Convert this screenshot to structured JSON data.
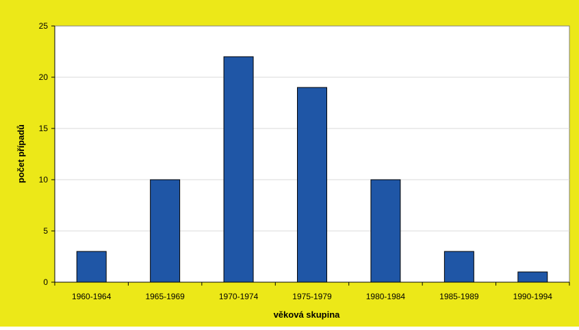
{
  "chart_data": {
    "type": "bar",
    "title": "",
    "xlabel": "věková skupina",
    "ylabel": "počet případů",
    "categories": [
      "1960-1964",
      "1965-1969",
      "1970-1974",
      "1975-1979",
      "1980-1984",
      "1985-1989",
      "1990-1994"
    ],
    "values": [
      3,
      10,
      22,
      19,
      10,
      3,
      1
    ],
    "ylim": [
      0,
      25
    ],
    "yticks": [
      0,
      5,
      10,
      15,
      20,
      25
    ],
    "grid": true,
    "legend": "none",
    "colors": {
      "background": "#ece818",
      "plot_area": "#ffffff",
      "bar": "#1f56a6",
      "bar_edge": "#000000",
      "grid": "#d9d9d9",
      "axis": "#7f7f7f"
    }
  }
}
